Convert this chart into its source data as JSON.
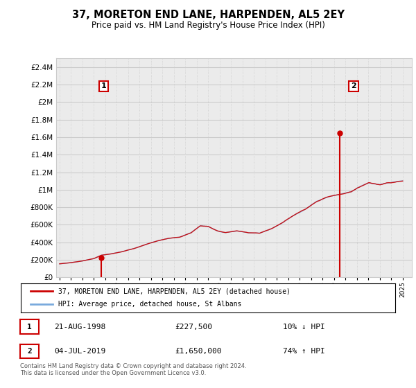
{
  "title": "37, MORETON END LANE, HARPENDEN, AL5 2EY",
  "subtitle": "Price paid vs. HM Land Registry's House Price Index (HPI)",
  "legend_line1": "37, MORETON END LANE, HARPENDEN, AL5 2EY (detached house)",
  "legend_line2": "HPI: Average price, detached house, St Albans",
  "footer1": "Contains HM Land Registry data © Crown copyright and database right 2024.",
  "footer2": "This data is licensed under the Open Government Licence v3.0.",
  "table": [
    {
      "num": "1",
      "date": "21-AUG-1998",
      "price": "£227,500",
      "pct": "10% ↓ HPI"
    },
    {
      "num": "2",
      "date": "04-JUL-2019",
      "price": "£1,650,000",
      "pct": "74% ↑ HPI"
    }
  ],
  "sale1_year": 1998.64,
  "sale1_price": 227500,
  "sale2_year": 2019.5,
  "sale2_price": 1650000,
  "ylim": [
    0,
    2500000
  ],
  "yticks": [
    0,
    200000,
    400000,
    600000,
    800000,
    1000000,
    1200000,
    1400000,
    1600000,
    1800000,
    2000000,
    2200000,
    2400000
  ],
  "line_color_red": "#cc0000",
  "line_color_blue": "#7aaadd",
  "grid_color": "#cccccc",
  "bg_color": "#ebebeb",
  "xlim_left": 1994.7,
  "xlim_right": 2025.8
}
